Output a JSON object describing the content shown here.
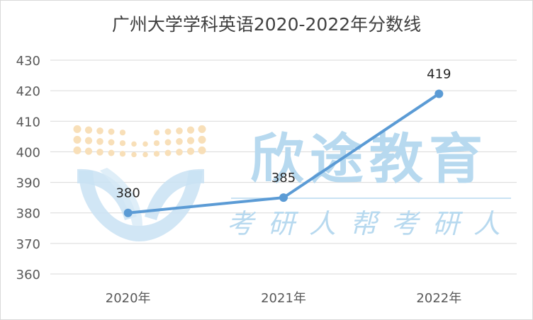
{
  "chart_data": {
    "type": "line",
    "title": "广州大学学科英语2020-2022年分数线",
    "categories": [
      "2020年",
      "2021年",
      "2022年"
    ],
    "series": [
      {
        "values": [
          380,
          385,
          419
        ],
        "color": "#5b9bd5"
      }
    ],
    "ylim": [
      360,
      430
    ],
    "ytick_step": 10,
    "grid": true,
    "data_labels": true
  },
  "watermark": {
    "brand": "欣途教育",
    "slogan": "考研人帮考研人",
    "colors": {
      "text": "#b7d9ef",
      "logo_dots": "#f8dfb8"
    }
  }
}
